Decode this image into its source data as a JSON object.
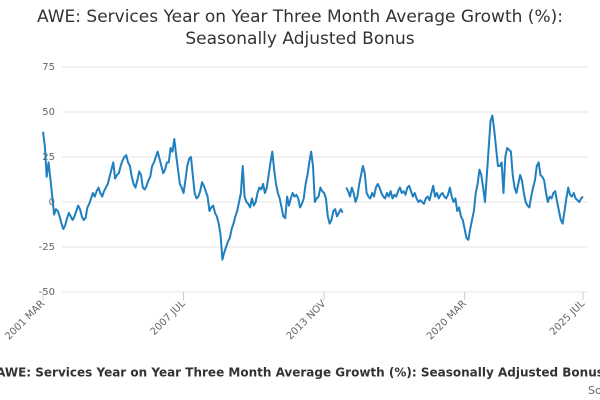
{
  "chart_data": {
    "type": "line",
    "title": "AWE: Services Year on Year Three Month Average Growth (%): Seasonally Adjusted Bonus",
    "source": "Source:",
    "categories": [
      "2001 MAR",
      null,
      null,
      null,
      null,
      null,
      null,
      null,
      null,
      null,
      null,
      null,
      null,
      null,
      null,
      null,
      null,
      null,
      null,
      null,
      null,
      null,
      null,
      null,
      null,
      null,
      null,
      null,
      null,
      null,
      null,
      null,
      null,
      null,
      null,
      null,
      null,
      null,
      null,
      null,
      null,
      null,
      null,
      null,
      null,
      null,
      null,
      null,
      null,
      null,
      null,
      null,
      null,
      null,
      null,
      null,
      null,
      null,
      null,
      null,
      null,
      null,
      null,
      null,
      null,
      null,
      null,
      null,
      null,
      null,
      null,
      null,
      null,
      null,
      null,
      null,
      "2007 JUL",
      null,
      null,
      null,
      null,
      null,
      null,
      null,
      null,
      null,
      null,
      null,
      null,
      null,
      null,
      null,
      null,
      null,
      null,
      null,
      null,
      null,
      null,
      null,
      null,
      null,
      null,
      null,
      null,
      null,
      null,
      null,
      null,
      null,
      null,
      null,
      null,
      null,
      null,
      null,
      null,
      null,
      null,
      null,
      null,
      null,
      null,
      null,
      null,
      null,
      null,
      null,
      null,
      null,
      null,
      null,
      null,
      null,
      null,
      null,
      null,
      null,
      null,
      null,
      null,
      null,
      null,
      null,
      null,
      null,
      null,
      null,
      null,
      null,
      null,
      null,
      "2013 NOV",
      null,
      null,
      null,
      null,
      null,
      null,
      null,
      null,
      null,
      null,
      null,
      null,
      null,
      null,
      null,
      null,
      null,
      null,
      null,
      null,
      null,
      null,
      null,
      null,
      null,
      null,
      null,
      null,
      null,
      null,
      null,
      null,
      null,
      null,
      null,
      null,
      null,
      null,
      null,
      null,
      null,
      null,
      null,
      null,
      null,
      null,
      null,
      null,
      null,
      null,
      null,
      null,
      null,
      null,
      null,
      null,
      null,
      null,
      null,
      null,
      null,
      null,
      null,
      null,
      null,
      null,
      null,
      null,
      null,
      null,
      null,
      null,
      null,
      null,
      null,
      "2020 MAR",
      null,
      null,
      null,
      null,
      null,
      null,
      null,
      null,
      null,
      null,
      null,
      null,
      null,
      null,
      null,
      null,
      null,
      null,
      null,
      null,
      null,
      null,
      null,
      null,
      null,
      null,
      null,
      null,
      null,
      null,
      null,
      null,
      null,
      null,
      null,
      null,
      null,
      null,
      null,
      null,
      null,
      null,
      null,
      null,
      null,
      null,
      null,
      null,
      null,
      null,
      null,
      null,
      null,
      null,
      null,
      null,
      null,
      null,
      null,
      null,
      null,
      null,
      null,
      "2025 JUL"
    ],
    "series": [
      {
        "name": "AWE: Services Year on Year Three Month Average Growth (%): Seasonally Adjusted Bonus",
        "color": "#1f7fbf",
        "values": [
          39,
          31,
          14,
          22,
          13,
          3,
          -7,
          -4,
          -5,
          -8,
          -12,
          -15,
          -13,
          -9,
          -6,
          -8,
          -10,
          -8,
          -5,
          -2,
          -4,
          -8,
          -10,
          -9,
          -3,
          -1,
          2,
          5,
          3,
          6,
          8,
          5,
          3,
          6,
          8,
          10,
          14,
          18,
          22,
          13,
          15,
          16,
          20,
          23,
          25,
          26,
          22,
          20,
          14,
          10,
          8,
          12,
          17,
          15,
          8,
          7,
          9,
          12,
          14,
          20,
          22,
          25,
          28,
          24,
          20,
          16,
          18,
          22,
          22,
          30,
          28,
          35,
          26,
          18,
          10,
          8,
          5,
          12,
          20,
          24,
          25,
          15,
          5,
          2,
          3,
          6,
          11,
          9,
          6,
          3,
          -5,
          -3,
          -2,
          -6,
          -8,
          -12,
          -18,
          -32,
          -28,
          -25,
          -22,
          -20,
          -15,
          -12,
          -8,
          -5,
          0,
          5,
          20,
          3,
          0,
          -1,
          -3,
          2,
          -2,
          0,
          5,
          8,
          7,
          10,
          5,
          8,
          15,
          22,
          28,
          18,
          10,
          5,
          2,
          -3,
          -8,
          -9,
          3,
          -2,
          2,
          5,
          3,
          4,
          2,
          -3,
          -1,
          2,
          10,
          15,
          22,
          28,
          20,
          0,
          2,
          3,
          8,
          6,
          5,
          2,
          -8,
          -12,
          -10,
          -5,
          -4,
          -8,
          -6,
          -4,
          -6,
          null,
          8,
          6,
          3,
          8,
          5,
          0,
          3,
          10,
          15,
          20,
          16,
          5,
          3,
          2,
          5,
          3,
          8,
          10,
          8,
          5,
          3,
          2,
          5,
          3,
          6,
          2,
          4,
          3,
          6,
          8,
          5,
          6,
          4,
          8,
          9,
          6,
          3,
          5,
          2,
          0,
          1,
          0,
          -1,
          2,
          3,
          1,
          5,
          9,
          3,
          5,
          2,
          4,
          5,
          3,
          2,
          4,
          8,
          3,
          0,
          2,
          -5,
          -3,
          -8,
          -10,
          -15,
          -20,
          -21,
          -15,
          -10,
          -5,
          5,
          10,
          18,
          15,
          8,
          0,
          15,
          30,
          45,
          48,
          40,
          30,
          20,
          20,
          22,
          5,
          25,
          30,
          29,
          28,
          15,
          8,
          5,
          10,
          15,
          12,
          5,
          0,
          -2,
          -3,
          3,
          8,
          12,
          20,
          22,
          15,
          14,
          12,
          5,
          0,
          3,
          2,
          5,
          6,
          0,
          -5,
          -10,
          -12,
          -5,
          2,
          8,
          4,
          3,
          5,
          2,
          1,
          0,
          2,
          3
        ]
      }
    ],
    "ylim": [
      -50,
      75
    ],
    "yticks": [
      -50,
      -25,
      0,
      25,
      50,
      75
    ],
    "grid": true
  }
}
